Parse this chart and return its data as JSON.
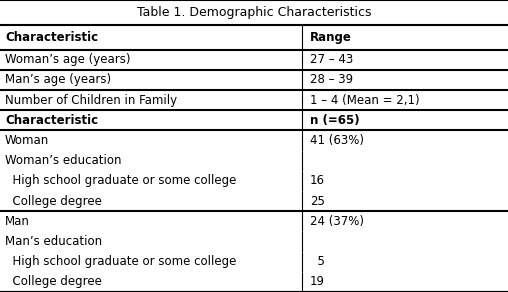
{
  "title": "Table 1. Demographic Characteristics",
  "col1_header": "Characteristic",
  "col2_header": "Range",
  "rows": [
    {
      "left": "Woman’s age (years)",
      "right": "27 – 43",
      "bold": false,
      "hline_bot": true
    },
    {
      "left": "Man’s age (years)",
      "right": "28 – 39",
      "bold": false,
      "hline_bot": true
    },
    {
      "left": "Number of Children in Family",
      "right": "1 – 4 (Mean = 2,1)",
      "bold": false,
      "hline_bot": true
    },
    {
      "left": "Characteristic",
      "right": "n (=65)",
      "bold": true,
      "hline_bot": true
    },
    {
      "left": "Woman",
      "right": "41 (63%)",
      "bold": false,
      "hline_bot": false
    },
    {
      "left": "Woman’s education",
      "right": "",
      "bold": false,
      "hline_bot": false
    },
    {
      "left": "  High school graduate or some college",
      "right": "16",
      "bold": false,
      "hline_bot": false
    },
    {
      "left": "  College degree",
      "right": "25",
      "bold": false,
      "hline_bot": true
    },
    {
      "left": "Man",
      "right": "24 (37%)",
      "bold": false,
      "hline_bot": false
    },
    {
      "left": "Man’s education",
      "right": "",
      "bold": false,
      "hline_bot": false
    },
    {
      "left": "  High school graduate or some college",
      "right": "  5",
      "bold": false,
      "hline_bot": false
    },
    {
      "left": "  College degree",
      "right": "19",
      "bold": false,
      "hline_bot": true
    }
  ],
  "font_size": 8.5,
  "title_font_size": 9.0,
  "col_split": 0.595,
  "bg_color": "#ffffff",
  "line_color": "#000000",
  "thick_lw": 1.5,
  "thin_lw": 0.8
}
